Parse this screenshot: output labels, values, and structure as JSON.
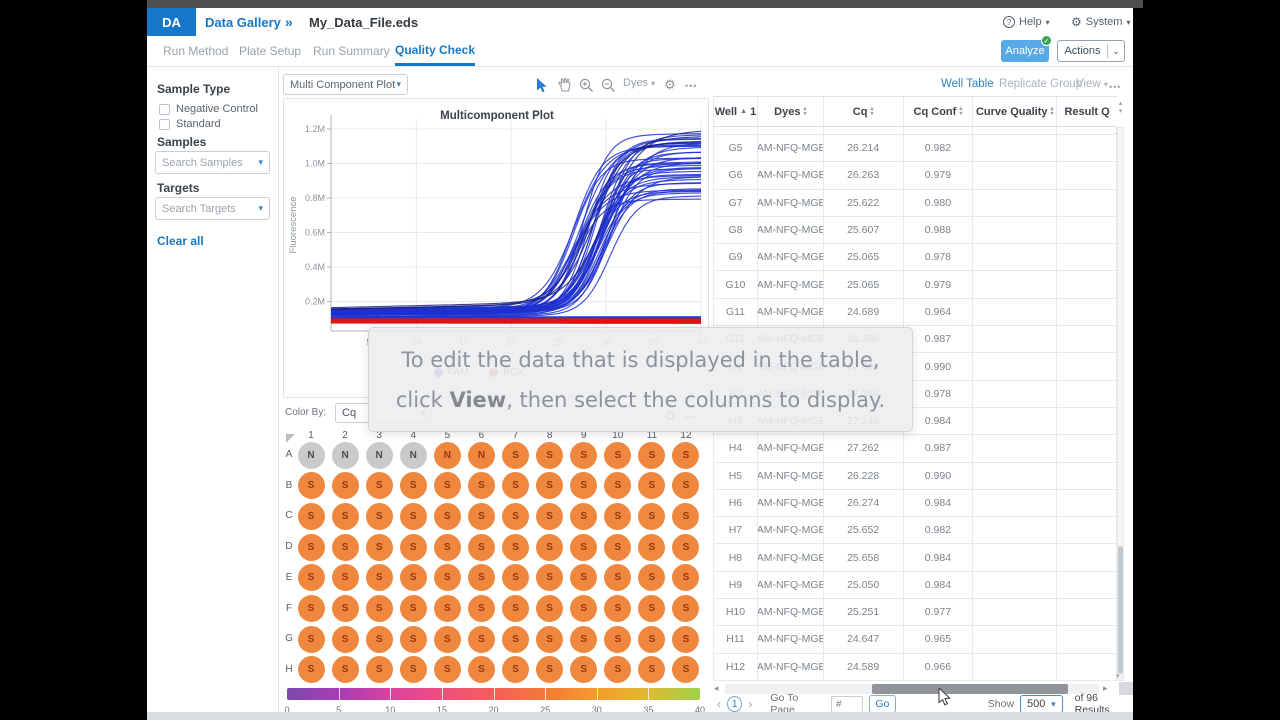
{
  "icons": {
    "caret_down": "▾",
    "chevron_down": "⌄",
    "breadcrumb_chevron": "»",
    "gear": "⚙",
    "help": "?",
    "check": "✓",
    "ellipsis": "•••",
    "sort_asc": "▲",
    "tri_up": "▴",
    "tri_down": "▾",
    "arrow_left": "◂",
    "arrow_right": "▸",
    "chevron_left": "‹",
    "chevron_right": "›"
  },
  "window": {
    "app_abbrev": "DA",
    "breadcrumb": "Data Gallery",
    "file_name": "My_Data_File.eds",
    "help_label": "Help",
    "system_label": "System"
  },
  "tabs": {
    "items": [
      "Run Method",
      "Plate Setup",
      "Run Summary",
      "Quality Check"
    ],
    "active": "Quality Check",
    "analyze_label": "Analyze",
    "actions_label": "Actions"
  },
  "sidebar": {
    "sample_type_heading": "Sample Type",
    "checkboxes": [
      {
        "label": "Negative Control",
        "checked": false
      },
      {
        "label": "Standard",
        "checked": false
      }
    ],
    "samples_heading": "Samples",
    "samples_placeholder": "Search Samples",
    "targets_heading": "Targets",
    "targets_placeholder": "Search Targets",
    "clear_all_label": "Clear all"
  },
  "plot_panel": {
    "selector_value": "Multi Component Plot",
    "dyes_label": "Dyes",
    "color_by_label": "Color By:",
    "color_by_value": "Cq"
  },
  "chart_data": [
    {
      "type": "line",
      "title": "Multicomponent Plot",
      "ylabel": "Fluorescence",
      "xlim": [
        1,
        40
      ],
      "ylim": [
        0,
        1300000
      ],
      "xticks": [
        5,
        10,
        15,
        20,
        25,
        30,
        35,
        40
      ],
      "yticks": [
        {
          "v": 200000,
          "label": "0.2M"
        },
        {
          "v": 400000,
          "label": "0.4M"
        },
        {
          "v": 600000,
          "label": "0.6M"
        },
        {
          "v": 800000,
          "label": "0.8M"
        },
        {
          "v": 1000000,
          "label": "1.0M"
        },
        {
          "v": 1200000,
          "label": "1.2M"
        }
      ],
      "grid": true,
      "legend": [
        {
          "name": "FAM",
          "color": "#6a6ae0"
        },
        {
          "name": "ROX",
          "color": "#ee6a50"
        }
      ],
      "series": [
        {
          "name": "FAM",
          "kind": "sigmoid_bundle",
          "color": "#1f30cf",
          "count": 40,
          "baseline": [
            105000,
            160000
          ],
          "plateau": [
            770000,
            1155000
          ],
          "midpoint": [
            26.5,
            30.5
          ],
          "steepness": [
            0.55,
            0.78
          ]
        },
        {
          "name": "FAM-outlier",
          "kind": "sigmoid_bundle",
          "color": "#17207f",
          "count": 3,
          "baseline": [
            150000,
            168000
          ],
          "drift": [
            900,
            1300
          ],
          "plateau": [
            1050000,
            1160000
          ],
          "midpoint": [
            28,
            30
          ],
          "steepness": [
            0.5,
            0.6
          ]
        },
        {
          "name": "FAM-negative",
          "kind": "flat_bundle",
          "color": "#1f30cf",
          "count": 5,
          "value": [
            96000,
            118000
          ]
        },
        {
          "name": "ROX",
          "kind": "flat_bundle",
          "color": "#e01414",
          "count": 26,
          "value": [
            75000,
            100000
          ]
        }
      ]
    },
    {
      "type": "heatmap",
      "x_labels": [
        "1",
        "2",
        "3",
        "4",
        "5",
        "6",
        "7",
        "8",
        "9",
        "10",
        "11",
        "12"
      ],
      "y_labels": [
        "A",
        "B",
        "C",
        "D",
        "E",
        "F",
        "G",
        "H"
      ],
      "cells": {
        "A": "NNNNNNSSSSSS",
        "B": "SSSSSSSSSSSS",
        "C": "SSSSSSSSSSSS",
        "D": "SSSSSSSSSSSS",
        "E": "SSSSSSSSSSSS",
        "F": "SSSSSSSSSSSS",
        "G": "SSSSSSSSSSSS",
        "H": "SSSSSSSSSSSS"
      },
      "cell_variants": {
        "A": "ggggoooooooo",
        "B": "oooooooooooo",
        "C": "oooooooooooo",
        "D": "oooooooooooo",
        "E": "oooooooooooo",
        "F": "oooooooooooo",
        "G": "oooooooooooo",
        "H": "oooooooooooo"
      },
      "palette": {
        "o": "#f0873f",
        "g": "#c9cacc"
      },
      "letter_colors": {
        "o": "#93390e",
        "g": "#4c4c4c"
      },
      "colorbar": {
        "ticks": [
          "0",
          "5",
          "10",
          "15",
          "20",
          "25",
          "30",
          "35",
          "40"
        ],
        "stops": [
          "#7b49ac",
          "#a83cb8",
          "#d8439f",
          "#ee4f7e",
          "#f2605a",
          "#f47a38",
          "#f59a2c",
          "#e0ba33",
          "#9fd14a"
        ]
      }
    }
  ],
  "table": {
    "view_tabs": [
      "Well Table",
      "Replicate Group"
    ],
    "active_view": "Well Table",
    "view_menu_label": "View",
    "columns": [
      "Well",
      "Dyes",
      "Cq",
      "Cq Conf",
      "Curve Quality",
      "Result Q"
    ],
    "well_sort_order": "1",
    "rows": [
      {
        "well": "G5",
        "dyes": "FAM-NFQ-MGB",
        "cq": "26.214",
        "cq_conf": "0.982",
        "curve_quality": "",
        "result_quality": ""
      },
      {
        "well": "G6",
        "dyes": "FAM-NFQ-MGB",
        "cq": "26.263",
        "cq_conf": "0.979",
        "curve_quality": "",
        "result_quality": ""
      },
      {
        "well": "G7",
        "dyes": "FAM-NFQ-MGB",
        "cq": "25.622",
        "cq_conf": "0.980",
        "curve_quality": "",
        "result_quality": ""
      },
      {
        "well": "G8",
        "dyes": "FAM-NFQ-MGB",
        "cq": "25.607",
        "cq_conf": "0.988",
        "curve_quality": "",
        "result_quality": ""
      },
      {
        "well": "G9",
        "dyes": "FAM-NFQ-MGB",
        "cq": "25.065",
        "cq_conf": "0.978",
        "curve_quality": "",
        "result_quality": ""
      },
      {
        "well": "G10",
        "dyes": "FAM-NFQ-MGB",
        "cq": "25.065",
        "cq_conf": "0.979",
        "curve_quality": "",
        "result_quality": ""
      },
      {
        "well": "G11",
        "dyes": "FAM-NFQ-MGB",
        "cq": "24.689",
        "cq_conf": "0.964",
        "curve_quality": "",
        "result_quality": ""
      },
      {
        "well": "G12",
        "dyes": "FAM-NFQ-MGB",
        "cq": "24.386",
        "cq_conf": "0.987",
        "curve_quality": "",
        "result_quality": ""
      },
      {
        "well": "H1",
        "dyes": "FAM-NFQ-MGB",
        "cq": "27.694",
        "cq_conf": "0.990",
        "curve_quality": "",
        "result_quality": ""
      },
      {
        "well": "H2",
        "dyes": "FAM-NFQ-MGB",
        "cq": "27.358",
        "cq_conf": "0.978",
        "curve_quality": "",
        "result_quality": ""
      },
      {
        "well": "H3",
        "dyes": "FAM-NFQ-MGB",
        "cq": "27.240",
        "cq_conf": "0.984",
        "curve_quality": "",
        "result_quality": ""
      },
      {
        "well": "H4",
        "dyes": "FAM-NFQ-MGB",
        "cq": "27.262",
        "cq_conf": "0.987",
        "curve_quality": "",
        "result_quality": ""
      },
      {
        "well": "H5",
        "dyes": "FAM-NFQ-MGB",
        "cq": "26.228",
        "cq_conf": "0.990",
        "curve_quality": "",
        "result_quality": ""
      },
      {
        "well": "H6",
        "dyes": "FAM-NFQ-MGB",
        "cq": "26.274",
        "cq_conf": "0.984",
        "curve_quality": "",
        "result_quality": ""
      },
      {
        "well": "H7",
        "dyes": "FAM-NFQ-MGB",
        "cq": "25.652",
        "cq_conf": "0.982",
        "curve_quality": "",
        "result_quality": ""
      },
      {
        "well": "H8",
        "dyes": "FAM-NFQ-MGB",
        "cq": "25.658",
        "cq_conf": "0.984",
        "curve_quality": "",
        "result_quality": ""
      },
      {
        "well": "H9",
        "dyes": "FAM-NFQ-MGB",
        "cq": "25.050",
        "cq_conf": "0.984",
        "curve_quality": "",
        "result_quality": ""
      },
      {
        "well": "H10",
        "dyes": "FAM-NFQ-MGB",
        "cq": "25.251",
        "cq_conf": "0.977",
        "curve_quality": "",
        "result_quality": ""
      },
      {
        "well": "H11",
        "dyes": "FAM-NFQ-MGB",
        "cq": "24.647",
        "cq_conf": "0.965",
        "curve_quality": "",
        "result_quality": ""
      },
      {
        "well": "H12",
        "dyes": "FAM-NFQ-MGB",
        "cq": "24.589",
        "cq_conf": "0.966",
        "curve_quality": "",
        "result_quality": ""
      }
    ]
  },
  "pagination": {
    "page": "1",
    "go_to_page_label": "Go To Page",
    "page_input_placeholder": "#",
    "go_label": "Go",
    "show_label": "Show",
    "page_size": "500",
    "results_label": "of 96 Results"
  },
  "overlay": {
    "line1": "To edit the data that is displayed in the table,",
    "line2_pre": "click ",
    "line2_view": "View",
    "line2_post": ", then select the columns to display."
  }
}
